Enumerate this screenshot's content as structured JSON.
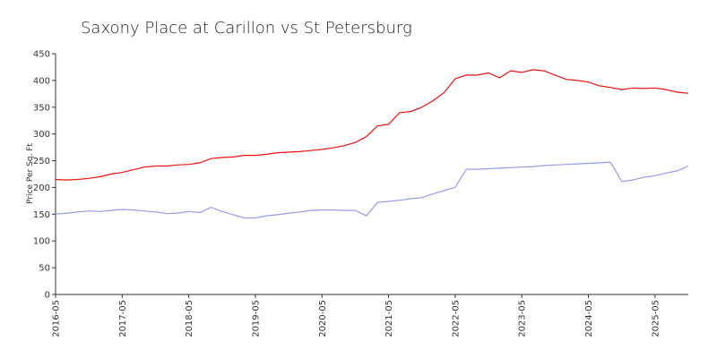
{
  "chart_data": {
    "type": "line",
    "title": "Saxony Place at Carillon vs St Petersburg",
    "y_label": "Price Per Sq. Ft",
    "x": [
      "2016-05",
      "2016-07",
      "2016-09",
      "2016-11",
      "2017-01",
      "2017-03",
      "2017-05",
      "2017-07",
      "2017-09",
      "2017-11",
      "2018-01",
      "2018-03",
      "2018-05",
      "2018-07",
      "2018-09",
      "2018-11",
      "2019-01",
      "2019-03",
      "2019-05",
      "2019-07",
      "2019-09",
      "2019-11",
      "2020-01",
      "2020-03",
      "2020-05",
      "2020-07",
      "2020-09",
      "2020-11",
      "2021-01",
      "2021-03",
      "2021-05",
      "2021-07",
      "2021-09",
      "2021-11",
      "2022-01",
      "2022-03",
      "2022-05",
      "2022-07",
      "2022-09",
      "2022-11",
      "2023-01",
      "2023-03",
      "2023-05",
      "2023-07",
      "2023-09",
      "2023-11",
      "2024-01",
      "2024-03",
      "2024-05",
      "2024-07",
      "2024-09",
      "2024-11",
      "2025-01",
      "2025-03",
      "2025-05",
      "2025-07",
      "2025-09",
      "2025-11"
    ],
    "series": [
      {
        "color": "#ee1111",
        "values": [
          215,
          214,
          215,
          217,
          220,
          225,
          228,
          233,
          238,
          240,
          240,
          242,
          243,
          246,
          254,
          256,
          257,
          260,
          260,
          262,
          265,
          266,
          267,
          269,
          271,
          274,
          278,
          284,
          295,
          315,
          318,
          340,
          342,
          350,
          362,
          377,
          403,
          410,
          410,
          414,
          405,
          418,
          415,
          420,
          418,
          410,
          402,
          400,
          397,
          390,
          387,
          383,
          386,
          385,
          386,
          383,
          378,
          376
        ]
      },
      {
        "color": "#9999ee",
        "values": [
          150,
          152,
          154,
          156,
          155,
          157,
          159,
          158,
          156,
          154,
          151,
          152,
          155,
          153,
          163,
          155,
          149,
          143,
          143,
          147,
          149,
          152,
          154,
          157,
          158,
          158,
          157,
          157,
          147,
          172,
          174,
          176,
          179,
          181,
          188,
          194,
          200,
          234,
          234,
          235,
          236,
          237,
          238,
          239,
          241,
          242,
          243,
          244,
          245,
          246,
          247,
          211,
          214,
          219,
          222,
          227,
          231,
          240
        ]
      }
    ],
    "xlim": [
      "2016-05",
      "2025-11"
    ],
    "xticks": [
      "2016-05",
      "2017-05",
      "2018-05",
      "2019-05",
      "2020-05",
      "2021-05",
      "2022-05",
      "2023-05",
      "2024-05",
      "2025-05"
    ],
    "ylim": [
      0,
      450
    ],
    "yticks": [
      0,
      50,
      100,
      150,
      200,
      250,
      300,
      350,
      400,
      450
    ],
    "grid": false
  }
}
